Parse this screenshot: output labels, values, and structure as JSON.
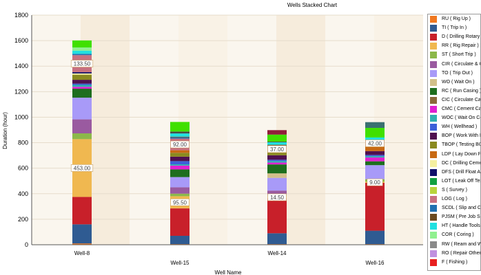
{
  "chart_data": {
    "type": "bar",
    "stacked": true,
    "title": "Wells Stacked Chart",
    "xlabel": "Well Name",
    "ylabel": "Duration (hour)",
    "ylim": [
      0,
      1800
    ],
    "yticks": [
      0,
      200,
      400,
      600,
      800,
      1000,
      1200,
      1400,
      1600,
      1800
    ],
    "categories": [
      "Well-8",
      "Well-15",
      "Well-14",
      "Well-16"
    ],
    "legend_position": "right",
    "grid": true,
    "series": [
      {
        "name": "RU ( Rig Up )",
        "color": "#f07820",
        "values": [
          10,
          5,
          5,
          5
        ]
      },
      {
        "name": "TI ( Trip In )",
        "color": "#2f5b92",
        "values": [
          150,
          65,
          85,
          105
        ]
      },
      {
        "name": "D ( Drilling Rotary )",
        "color": "#c8202a",
        "values": [
          215,
          215,
          275,
          375
        ]
      },
      {
        "name": "RR ( Rig Repair )",
        "color": "#f0b850",
        "values": [
          453,
          95.5,
          14.5,
          9
        ]
      },
      {
        "name": "ST ( Short Trip )",
        "color": "#8cb84a",
        "values": [
          45,
          20,
          10,
          20
        ]
      },
      {
        "name": "CIR ( Circulate & Condition )",
        "color": "#9a5aa0",
        "values": [
          110,
          50,
          35,
          0
        ]
      },
      {
        "name": "TO ( Trip Out )",
        "color": "#a89af8",
        "values": [
          170,
          80,
          100,
          110
        ]
      },
      {
        "name": "WO ( Wait On )",
        "color": "#d2c08a",
        "values": [
          0,
          0,
          35,
          0
        ]
      },
      {
        "name": "RC ( Run Casing )",
        "color": "#1e6e1e",
        "values": [
          70,
          60,
          70,
          30
        ]
      },
      {
        "name": "CIC ( Circulate Casing )",
        "color": "#8a6a3a",
        "values": [
          0,
          0,
          0,
          0
        ]
      },
      {
        "name": "CMC ( Cement Casing )",
        "color": "#e020d0",
        "values": [
          15,
          30,
          15,
          30
        ]
      },
      {
        "name": "WOC ( Wait On Cement )",
        "color": "#30b0b0",
        "values": [
          15,
          10,
          12,
          10
        ]
      },
      {
        "name": "WH ( Wellhead )",
        "color": "#3c60d8",
        "values": [
          10,
          25,
          10,
          10
        ]
      },
      {
        "name": "BOP ( Work With BOP )",
        "color": "#501050",
        "values": [
          30,
          35,
          35,
          30
        ]
      },
      {
        "name": "TBOP ( Testing BOP )",
        "color": "#8a8a20",
        "values": [
          40,
          30,
          20,
          0
        ]
      },
      {
        "name": "LDP ( Lay Down Pipe )",
        "color": "#c86a14",
        "values": [
          0,
          20,
          10,
          40
        ]
      },
      {
        "name": "DC ( Drilling Cement )",
        "color": "#f5f0a0",
        "values": [
          10,
          0,
          0,
          0
        ]
      },
      {
        "name": "DFS ( Drill Float And Shoe )",
        "color": "#10106a",
        "values": [
          10,
          0,
          0,
          0
        ]
      },
      {
        "name": "LOT ( Leak Off Test )",
        "color": "#10a040",
        "values": [
          0,
          0,
          0,
          0
        ]
      },
      {
        "name": "S ( Survey )",
        "color": "#b8d43c",
        "values": [
          0,
          0,
          0,
          0
        ]
      },
      {
        "name": "LOG ( Log )",
        "color": "#c87080",
        "values": [
          133.5,
          92,
          37,
          42
        ]
      },
      {
        "name": "SCDL ( Slip and Cut Drill Line )",
        "color": "#2070b0",
        "values": [
          10,
          10,
          5,
          0
        ]
      },
      {
        "name": "PJSM ( Pre Job Safety Meeting )",
        "color": "#6a4a20",
        "values": [
          0,
          5,
          10,
          5
        ]
      },
      {
        "name": "HT ( Handle Tools )",
        "color": "#20e0e0",
        "values": [
          25,
          25,
          20,
          20
        ]
      },
      {
        "name": "COR ( Coring )",
        "color": "#90f090",
        "values": [
          25,
          0,
          0,
          0
        ]
      },
      {
        "name": "RW ( Ream and Wash )",
        "color": "#8a8a8a",
        "values": [
          0,
          0,
          0,
          0
        ]
      },
      {
        "name": "RO ( Repair Other )",
        "color": "#c090e0",
        "values": [
          0,
          0,
          0,
          0
        ]
      },
      {
        "name": "F ( Fishing )",
        "color": "#e82020",
        "values": [
          0,
          0,
          0,
          0
        ]
      },
      {
        "name": "",
        "color": "#4a4a4a",
        "values": [
          0,
          15,
          5,
          0
        ]
      },
      {
        "name": "",
        "color": "#40e000",
        "values": [
          55,
          75,
          55,
          75
        ]
      },
      {
        "name": "",
        "color": "#90203a",
        "values": [
          0,
          0,
          35,
          0
        ]
      },
      {
        "name": "",
        "color": "#3a7070",
        "values": [
          0,
          0,
          0,
          45
        ]
      }
    ],
    "data_labels": [
      {
        "series": "D ( Drilling Rotary )",
        "category": "Well-8",
        "text": "453.00",
        "series_ref": "RR ( Rig Repair )"
      },
      {
        "category": "Well-8",
        "text": "133.50",
        "series_ref": "LOG ( Log )"
      },
      {
        "category": "Well-15",
        "text": "92.00",
        "series_ref": "LOG ( Log )"
      },
      {
        "category": "Well-15",
        "text": "95.50",
        "series_ref": "RR ( Rig Repair )"
      },
      {
        "category": "Well-14",
        "text": "37.00",
        "series_ref": "LOG ( Log )"
      },
      {
        "category": "Well-14",
        "text": "14.50",
        "series_ref": "RR ( Rig Repair )"
      },
      {
        "category": "Well-16",
        "text": "42.00",
        "series_ref": "LOG ( Log )"
      },
      {
        "category": "Well-16",
        "text": "9.00",
        "series_ref": "RR ( Rig Repair )"
      }
    ]
  }
}
